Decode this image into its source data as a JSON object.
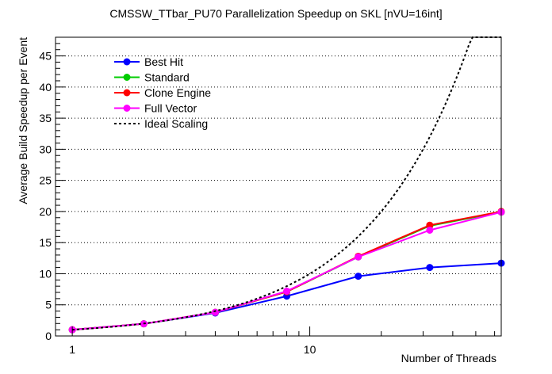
{
  "chart_data": {
    "type": "line",
    "title": "CMSSW_TTbar_PU70 Parallelization Speedup on SKL [nVU=16int]",
    "xlabel": "Number of Threads",
    "ylabel": "Average Build Speedup per Event",
    "xscale": "log",
    "xlim": [
      0.85,
      64
    ],
    "ylim": [
      0,
      48
    ],
    "xticks": [
      {
        "value": 1,
        "label": "1"
      },
      {
        "value": 10,
        "label": "10"
      }
    ],
    "yticks": [
      0,
      5,
      10,
      15,
      20,
      25,
      30,
      35,
      40,
      45
    ],
    "grid": "horizontal-dotted",
    "legend_position": "top-left",
    "x": [
      1,
      2,
      4,
      8,
      16,
      32,
      64
    ],
    "series": [
      {
        "name": "Best Hit",
        "color": "#0000ff",
        "marker": "circle",
        "values": [
          1.0,
          1.95,
          3.7,
          6.4,
          9.6,
          11.0,
          11.7
        ]
      },
      {
        "name": "Standard",
        "color": "#00cc00",
        "marker": "circle",
        "values": [
          1.0,
          1.95,
          3.8,
          7.1,
          12.7,
          17.7,
          19.9
        ]
      },
      {
        "name": "Clone Engine",
        "color": "#ff0000",
        "marker": "circle",
        "values": [
          1.0,
          1.95,
          3.8,
          7.1,
          12.8,
          17.8,
          20.0
        ]
      },
      {
        "name": "Full Vector",
        "color": "#ff00ff",
        "marker": "circle",
        "values": [
          1.0,
          1.95,
          3.8,
          7.2,
          12.7,
          17.0,
          19.9
        ]
      },
      {
        "name": "Ideal Scaling",
        "color": "#000000",
        "marker": "none",
        "dash": true,
        "values": [
          1,
          2,
          4,
          8,
          16,
          32,
          48
        ]
      }
    ]
  }
}
